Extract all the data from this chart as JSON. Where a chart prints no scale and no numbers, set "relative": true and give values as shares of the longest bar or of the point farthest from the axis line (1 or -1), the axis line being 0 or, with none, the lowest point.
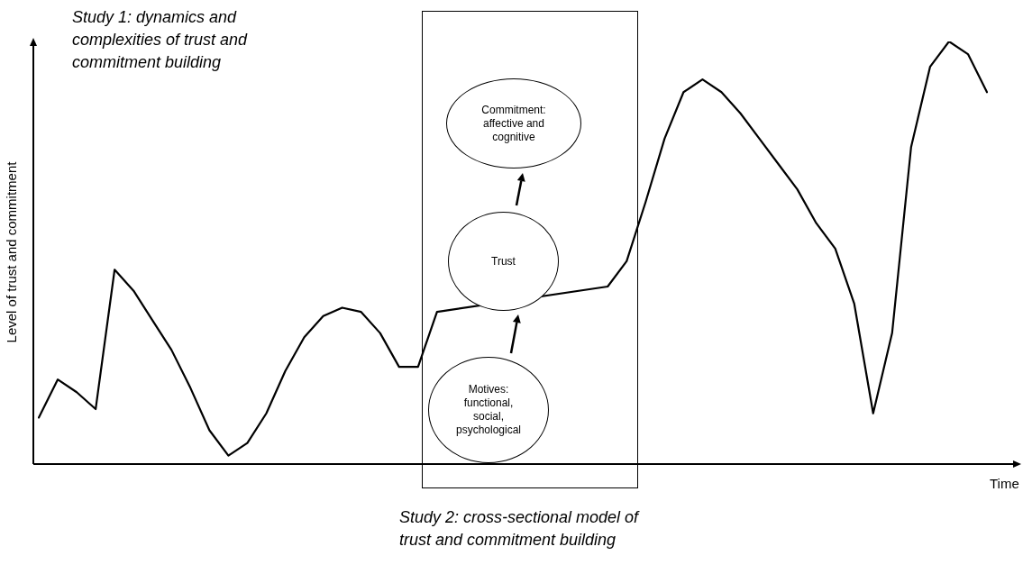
{
  "chart_data": {
    "type": "line",
    "relative": true,
    "marker": "none",
    "line_style": "solid",
    "xlabel": "Time",
    "ylabel": "Level of trust and commitment",
    "annotations": [
      "Study 1: dynamics and complexities of trust and commitment building",
      "Study 2: cross-sectional model of trust and commitment building",
      "Commitment: affective and cognitive",
      "Trust",
      "Motives: functional, social, psychological"
    ],
    "categories": [
      null,
      null,
      null,
      null,
      null,
      null,
      null,
      null,
      null,
      null,
      null,
      null,
      null,
      null,
      null,
      null,
      null,
      null,
      null,
      null,
      null,
      null,
      null,
      null,
      null,
      null,
      null,
      null,
      null,
      null,
      null,
      null,
      null,
      null,
      null,
      null,
      null,
      null,
      null,
      null,
      null,
      null,
      null,
      null,
      null,
      null,
      null,
      null,
      null,
      null,
      null
    ],
    "series": [
      {
        "color": "#000000",
        "values": [
          0.11,
          0.2,
          0.17,
          0.13,
          0.46,
          0.41,
          0.34,
          0.27,
          0.18,
          0.08,
          0.02,
          0.05,
          0.12,
          0.22,
          0.3,
          0.35,
          0.37,
          0.36,
          0.31,
          0.23,
          0.23,
          0.36,
          null,
          null,
          null,
          null,
          null,
          null,
          null,
          null,
          0.42,
          0.48,
          0.62,
          0.77,
          0.88,
          0.91,
          0.88,
          0.83,
          0.77,
          0.71,
          0.65,
          0.57,
          0.51,
          0.38,
          0.12,
          0.31,
          0.75,
          0.94,
          1,
          0.97,
          0.88
        ]
      }
    ]
  }
}
